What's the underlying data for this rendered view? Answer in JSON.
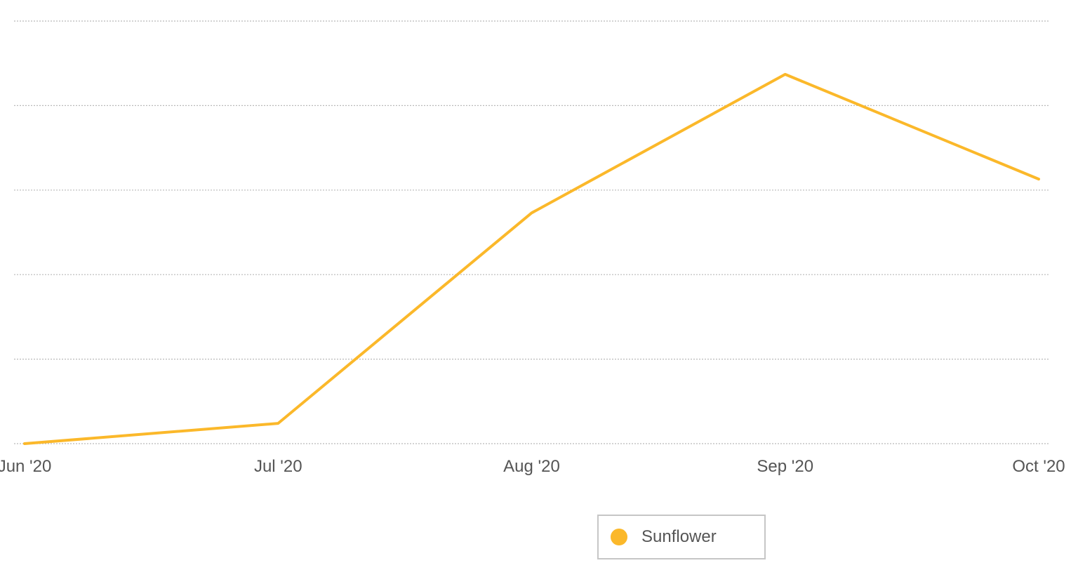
{
  "chart_data": {
    "type": "line",
    "categories": [
      "Jun '20",
      "Jul '20",
      "Aug '20",
      "Sep '20",
      "Oct '20"
    ],
    "series": [
      {
        "name": "Sunflower",
        "color": "#fbb82a",
        "values": [
          0,
          2.4,
          27.3,
          43.7,
          31.3
        ]
      }
    ],
    "ylim": [
      0,
      50
    ],
    "y_grid_count": 6,
    "y_tick_labels_visible": false,
    "grid": true,
    "legend_position": "bottom-center"
  }
}
